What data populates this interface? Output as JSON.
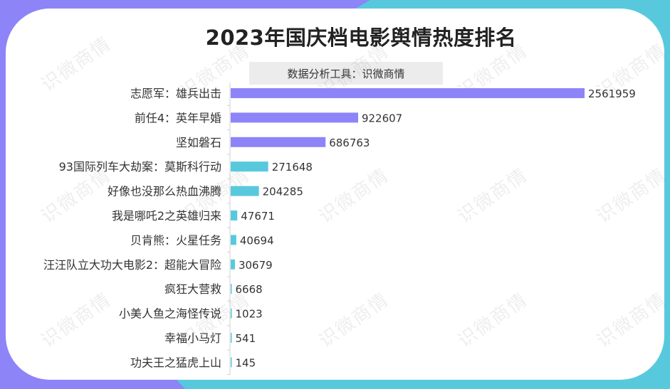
{
  "watermark": "识微商情",
  "chart_data": {
    "type": "bar",
    "orientation": "horizontal",
    "title": "2023年国庆档电影舆情热度排名",
    "subtitle": "数据分析工具：识微商情",
    "categories": [
      "志愿军：雄兵出击",
      "前任4：英年早婚",
      "坚如磐石",
      "93国际列车大劫案：莫斯科行动",
      "好像也没那么热血沸腾",
      "我是哪吒2之英雄归来",
      "贝肯熊：火星任务",
      "汪汪队立大功大电影2：超能大冒险",
      "疯狂大营救",
      "小美人鱼之海怪传说",
      "幸福小马灯",
      "功夫王之猛虎上山"
    ],
    "values": [
      2561959,
      922607,
      686763,
      271648,
      204285,
      47671,
      40694,
      30679,
      6668,
      1023,
      541,
      145
    ],
    "value_labels": [
      "2561959",
      "922607",
      "686763",
      "271648",
      "204285",
      "47671",
      "40694",
      "30679",
      "6668",
      "1023",
      "541",
      "145"
    ],
    "colors": [
      "#8d84f8",
      "#8d84f8",
      "#8d84f8",
      "#58c9dd",
      "#58c9dd",
      "#58c9dd",
      "#58c9dd",
      "#58c9dd",
      "#58c9dd",
      "#58c9dd",
      "#58c9dd",
      "#58c9dd"
    ],
    "xlim": [
      0,
      2561959
    ],
    "grid": false,
    "legend": "none"
  }
}
